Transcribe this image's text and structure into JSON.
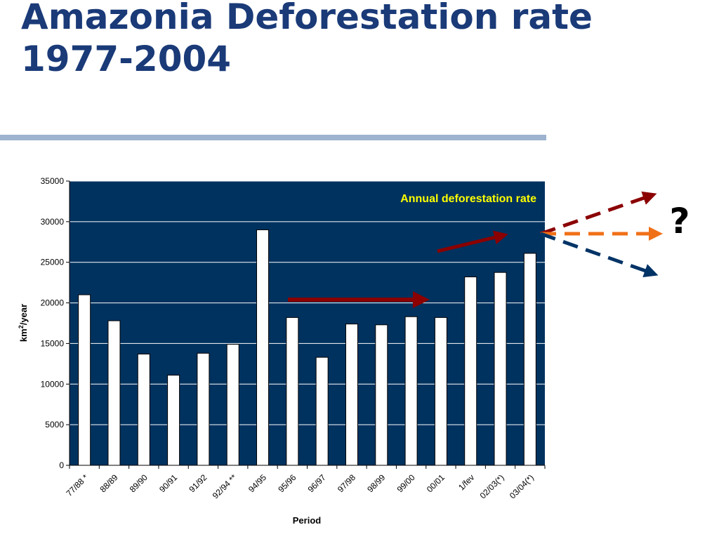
{
  "slide": {
    "title_line1": "Amazonia Deforestation rate",
    "title_line2": "1977-2004"
  },
  "chart_data": {
    "type": "bar",
    "title": "",
    "annotation": "Annual deforestation rate",
    "xlabel": "Period",
    "ylabel_main": "km",
    "ylabel_sup": "2",
    "ylabel_rest": "/year",
    "ylim": [
      0,
      35000
    ],
    "yticks": [
      0,
      5000,
      10000,
      15000,
      20000,
      25000,
      30000,
      35000
    ],
    "grid": true,
    "categories": [
      "77/88 *",
      "88/89",
      "89/90",
      "90/91",
      "91/92",
      "92/94 **",
      "94/95",
      "95/96",
      "96/97",
      "97/98",
      "98/99",
      "99/00",
      "00/01",
      "1/fev",
      "02/03(*)",
      "03/04(*)"
    ],
    "values": [
      21000,
      17800,
      13700,
      11100,
      13800,
      14900,
      29000,
      18200,
      13300,
      17400,
      17300,
      18300,
      18200,
      23200,
      23750,
      26100
    ],
    "colors": {
      "plot_background": "#00325f",
      "bar_fill": "#ffffff",
      "annotation_text": "#ffff00",
      "arrow_dark_red": "#8b0000",
      "arrow_orange": "#f07018",
      "arrow_navy": "#003366"
    },
    "question_mark": "?"
  }
}
